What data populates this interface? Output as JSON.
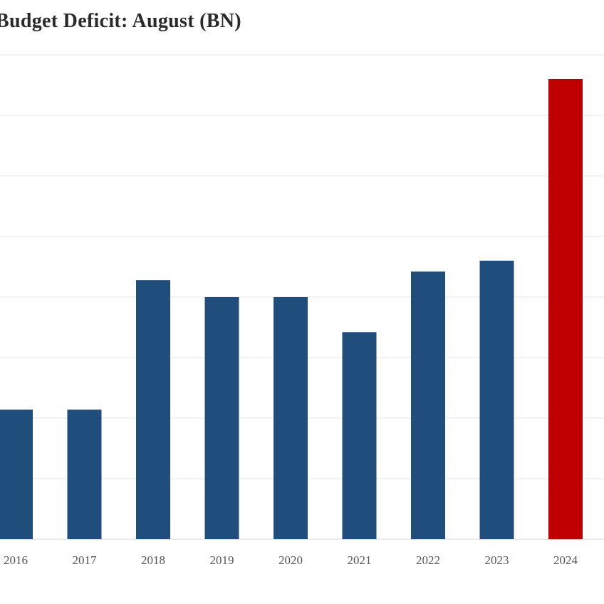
{
  "chart_data": {
    "type": "bar",
    "title": "Budget Deficit: August (BN)",
    "categories": [
      "2016",
      "2017",
      "2018",
      "2019",
      "2020",
      "2021",
      "2022",
      "2023",
      "2024"
    ],
    "values": [
      107,
      107,
      214,
      200,
      200,
      171,
      221,
      230,
      380
    ],
    "ylim": [
      0,
      400
    ],
    "grid": true,
    "colors": {
      "bar": "#1f4e7d",
      "highlight": "#c00000",
      "grid": "#e6e6e6"
    },
    "highlight_index": 8
  }
}
